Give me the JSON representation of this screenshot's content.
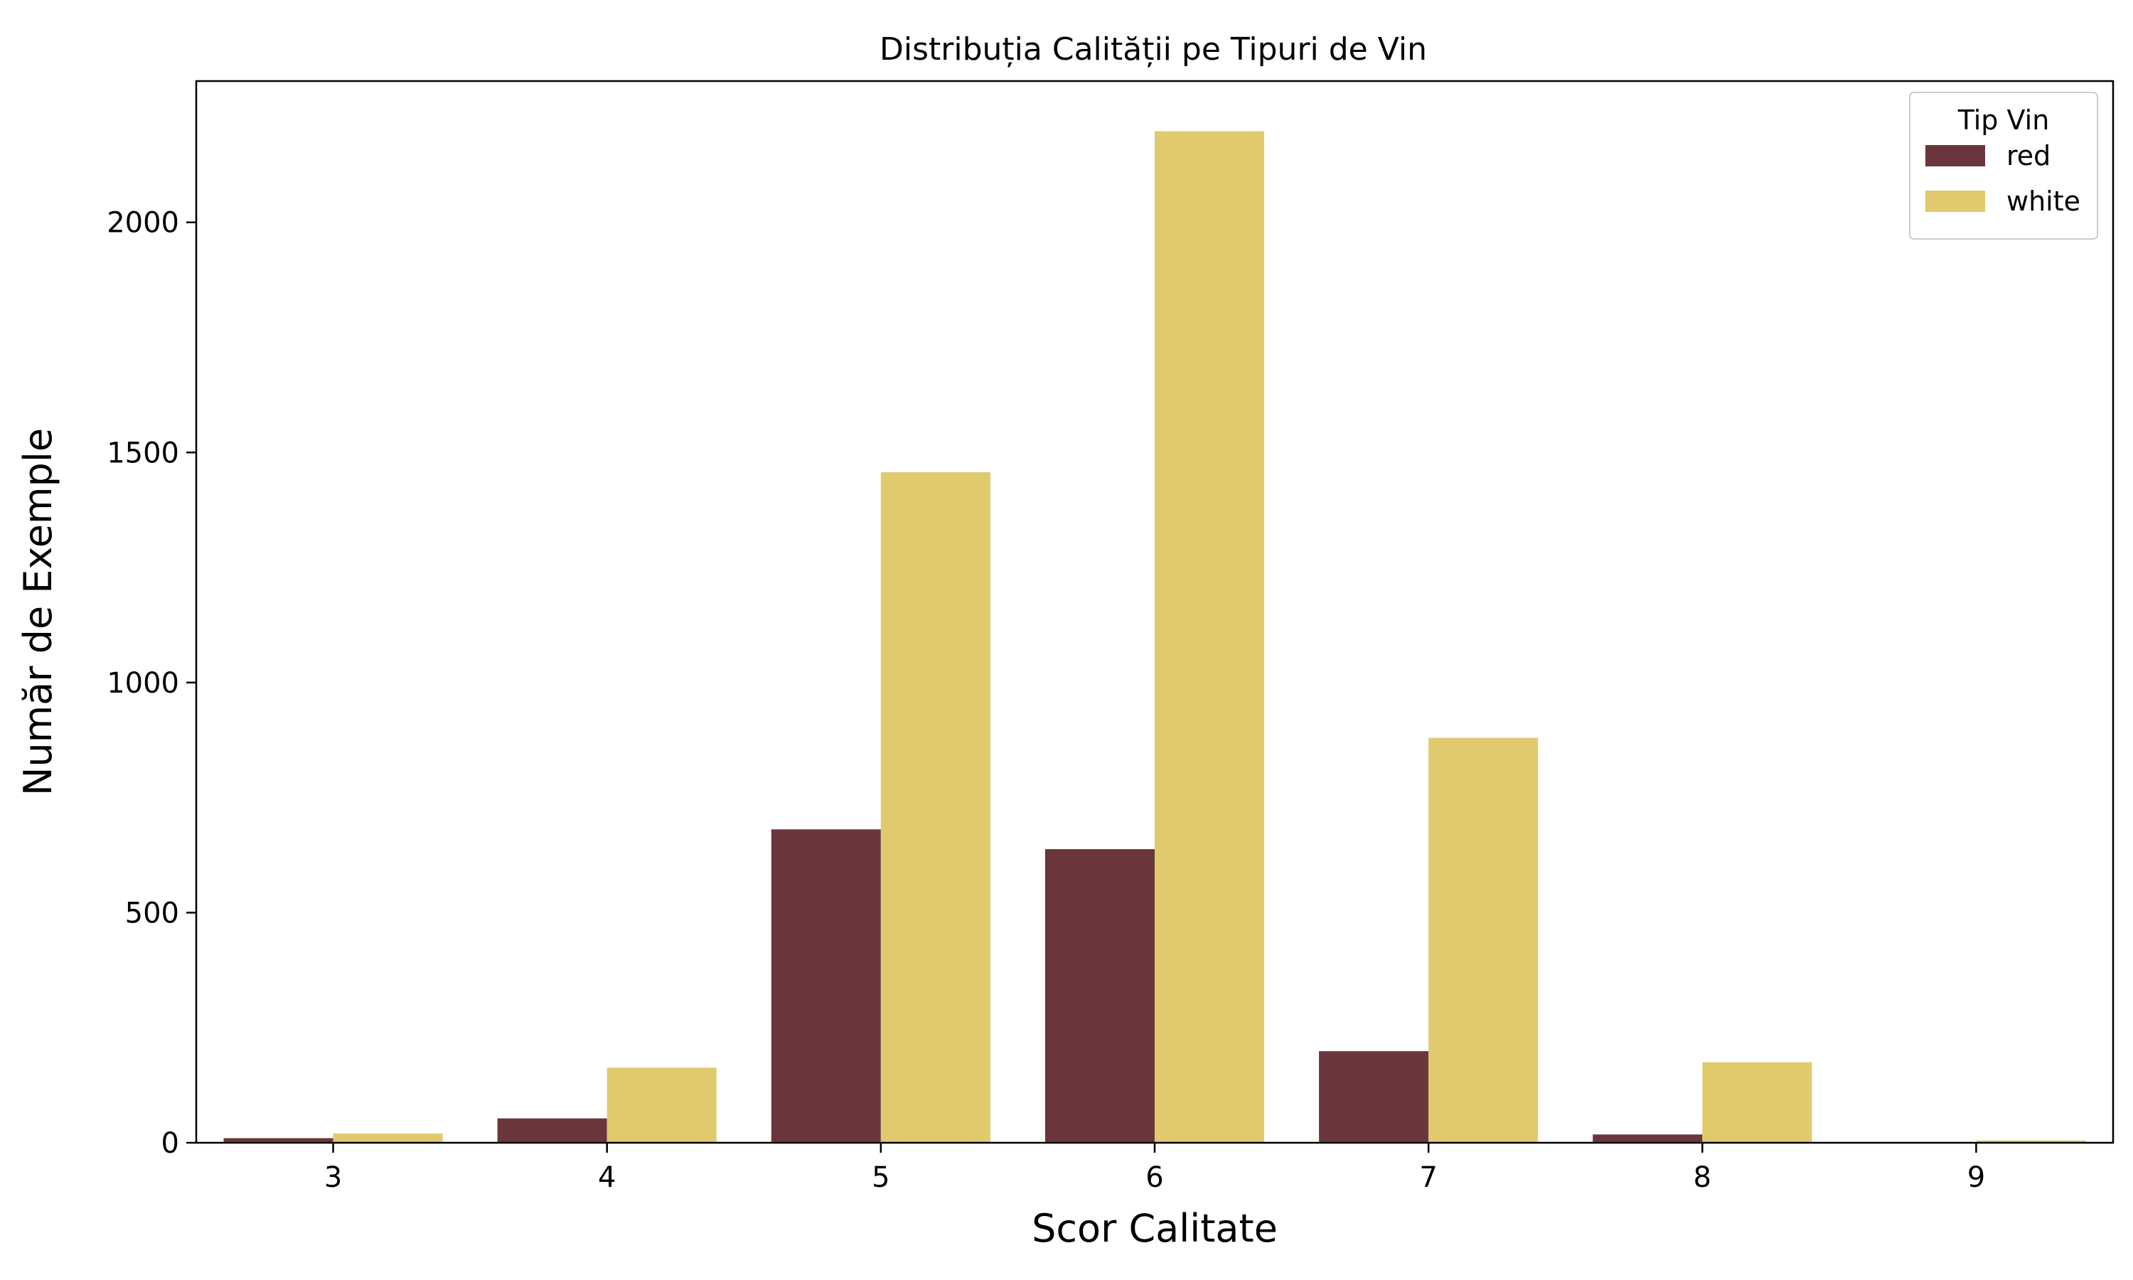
{
  "chart_data": {
    "type": "bar",
    "title": "Distribuția Calității pe Tipuri de Vin",
    "xlabel": "Scor Calitate",
    "ylabel": "Număr de Exemple",
    "categories": [
      "3",
      "4",
      "5",
      "6",
      "7",
      "8",
      "9"
    ],
    "series": [
      {
        "name": "red",
        "color": "#6b363b",
        "values": [
          10,
          53,
          681,
          638,
          199,
          18,
          0
        ]
      },
      {
        "name": "white",
        "color": "#e1c96e",
        "values": [
          20,
          163,
          1457,
          2198,
          880,
          175,
          5
        ]
      }
    ],
    "ylim": [
      0,
      2307
    ],
    "yticks": [
      0,
      500,
      1000,
      1500,
      2000
    ],
    "legend": {
      "title": "Tip Vin",
      "placement": "top-right"
    },
    "grid": false
  }
}
